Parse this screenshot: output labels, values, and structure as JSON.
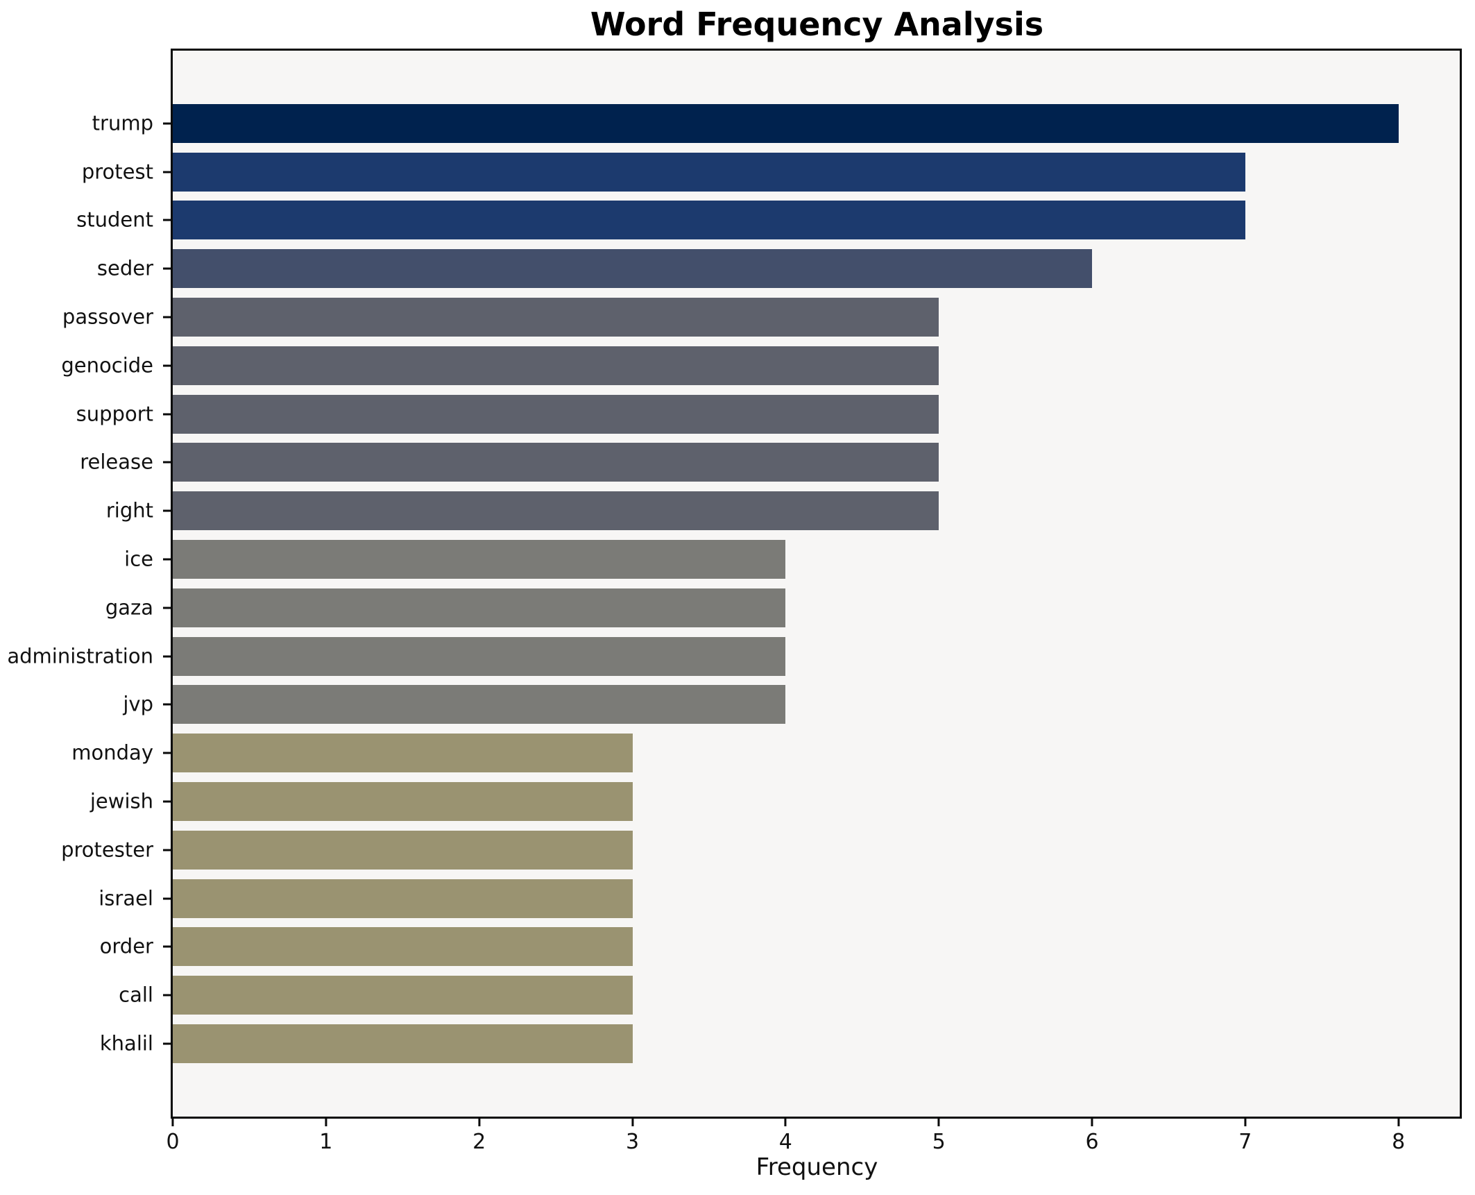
{
  "chart_data": {
    "type": "bar",
    "orientation": "horizontal",
    "title": "Word Frequency Analysis",
    "xlabel": "Frequency",
    "ylabel": "",
    "categories": [
      "trump",
      "protest",
      "student",
      "seder",
      "passover",
      "genocide",
      "support",
      "release",
      "right",
      "ice",
      "gaza",
      "administration",
      "jvp",
      "monday",
      "jewish",
      "protester",
      "israel",
      "order",
      "call",
      "khalil"
    ],
    "values": [
      8,
      7,
      7,
      6,
      5,
      5,
      5,
      5,
      5,
      4,
      4,
      4,
      4,
      3,
      3,
      3,
      3,
      3,
      3,
      3
    ],
    "xticks": [
      0,
      1,
      2,
      3,
      4,
      5,
      6,
      7,
      8
    ],
    "xlim": [
      0,
      8.4
    ],
    "grid": false,
    "legend": null,
    "color_by_value": {
      "8": "#00224e",
      "7": "#1c3a6e",
      "6": "#434f6b",
      "5": "#5e616c",
      "4": "#7b7b77",
      "3": "#9a9371"
    },
    "plot_background": "#f7f6f5",
    "figure_background": "#ffffff",
    "spine_color": "#0a0a0a"
  }
}
